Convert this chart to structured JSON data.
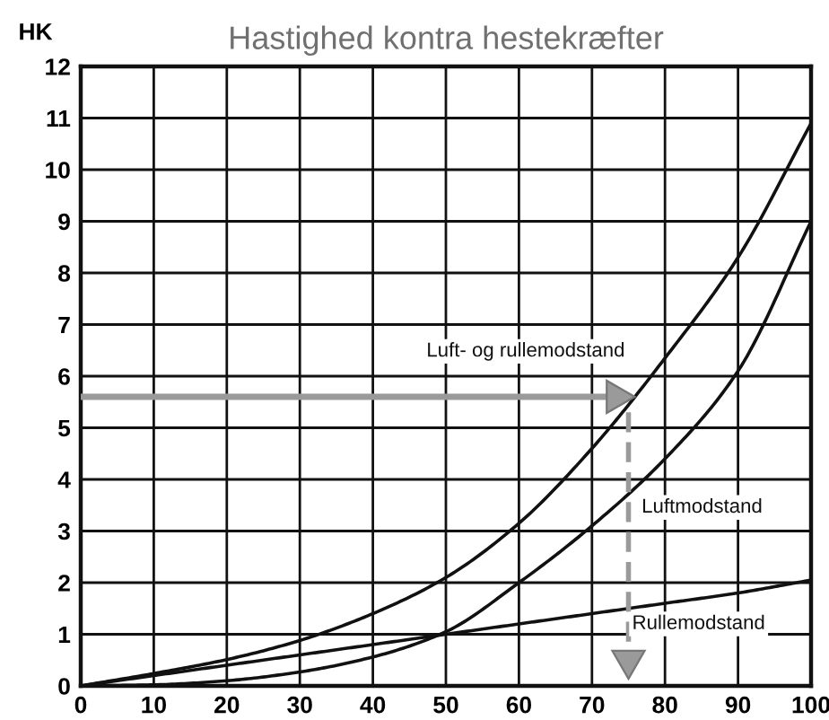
{
  "chart_data": {
    "type": "line",
    "title": "Hastighed kontra hestekræfter",
    "ylabel": "HK",
    "x": [
      0,
      10,
      20,
      30,
      40,
      50,
      60,
      70,
      80,
      90,
      100
    ],
    "series": [
      {
        "name": "Luft- og rullemodstand",
        "color": "#111111",
        "values": [
          0,
          0.24,
          0.51,
          0.88,
          1.4,
          2.1,
          3.15,
          4.6,
          6.35,
          8.3,
          10.9
        ]
      },
      {
        "name": "Luftmodstand",
        "color": "#111111",
        "values": [
          0,
          0.02,
          0.1,
          0.27,
          0.56,
          1.05,
          2.0,
          3.1,
          4.4,
          6.1,
          9.0
        ]
      },
      {
        "name": "Rullemodstand",
        "color": "#111111",
        "values": [
          0,
          0.2,
          0.4,
          0.6,
          0.8,
          1.0,
          1.2,
          1.4,
          1.6,
          1.8,
          2.05
        ]
      },
      {
        "color": "#9a9a9a",
        "x": [
          0,
          73.3
        ],
        "values": [
          5.6,
          5.6
        ],
        "marker": "triangle",
        "line_style": "solid"
      },
      {
        "color": "#9a9a9a",
        "x": [
          75,
          75
        ],
        "values": [
          5.3,
          0.5
        ],
        "marker": "triangle",
        "line_style": "dashed"
      }
    ],
    "xlim": [
      0,
      100
    ],
    "ylim": [
      0,
      12
    ],
    "xticks": [
      0,
      10,
      20,
      30,
      40,
      50,
      60,
      70,
      80,
      90,
      100
    ],
    "yticks": [
      0,
      1,
      2,
      3,
      4,
      5,
      6,
      7,
      8,
      9,
      10,
      11,
      12
    ],
    "grid": true,
    "legend": false
  }
}
